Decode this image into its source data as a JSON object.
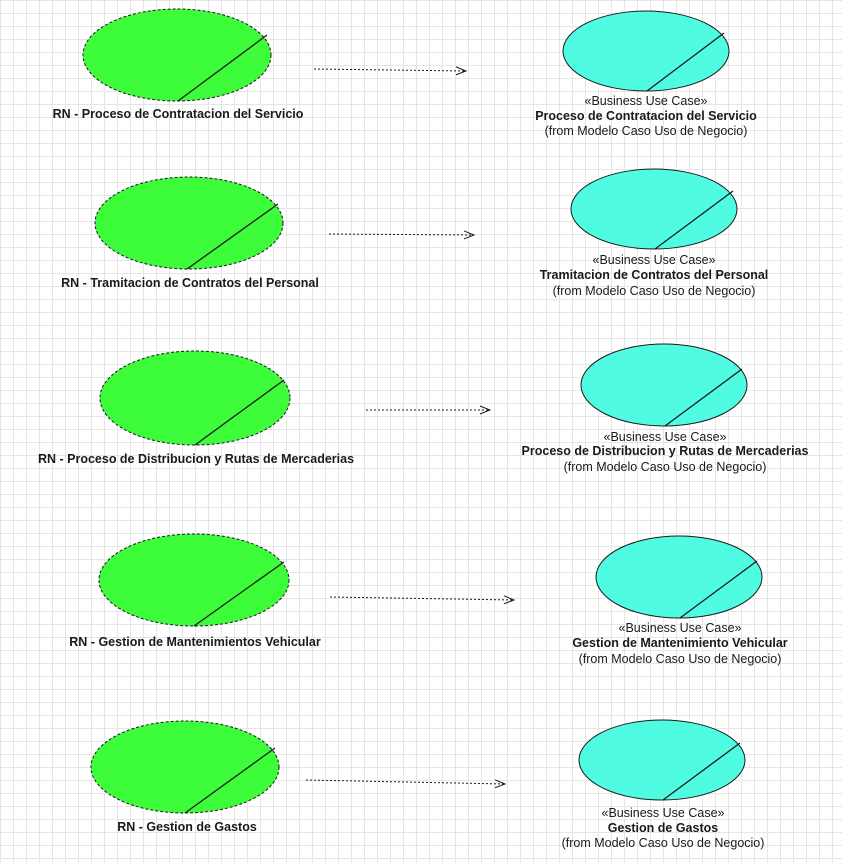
{
  "rows": [
    {
      "rule": {
        "prefix": "RN - ",
        "name": "Proceso de Contratacion del Servicio"
      },
      "business": {
        "stereotype": "«Business Use Case»",
        "name": "Proceso de Contratacion del Servicio",
        "from": "(from Modelo Caso Uso de Negocio)"
      }
    },
    {
      "rule": {
        "prefix": "RN - ",
        "name": "Tramitacion de Contratos del Personal"
      },
      "business": {
        "stereotype": "«Business Use Case»",
        "name": "Tramitacion de Contratos del Personal",
        "from": "(from Modelo Caso Uso de Negocio)"
      }
    },
    {
      "rule": {
        "prefix": "RN - ",
        "name": "Proceso de Distribucion y Rutas de Mercaderias"
      },
      "business": {
        "stereotype": "«Business Use Case»",
        "name": "Proceso de Distribucion y Rutas de Mercaderias",
        "from": "(from Modelo Caso Uso de Negocio)"
      }
    },
    {
      "rule": {
        "prefix": "RN - ",
        "name": "Gestion de Mantenimientos Vehicular"
      },
      "business": {
        "stereotype": "«Business Use Case»",
        "name": "Gestion de Mantenimiento Vehicular",
        "from": "(from Modelo Caso Uso de Negocio)"
      }
    },
    {
      "rule": {
        "prefix": "RN - ",
        "name": "Gestion de Gastos"
      },
      "business": {
        "stereotype": "«Business Use Case»",
        "name": "Gestion de Gastos",
        "from": "(from Modelo Caso Uso de Negocio)"
      }
    }
  ],
  "colors": {
    "rule_fill": "#3dfc3a",
    "business_fill": "#4ffce1",
    "stroke": "#1a1a1a",
    "grid": "#e6e6e6"
  }
}
